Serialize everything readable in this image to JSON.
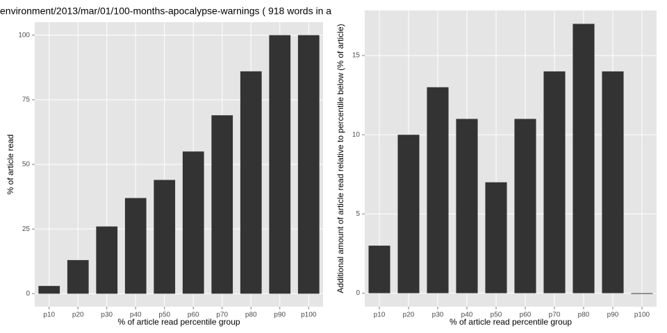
{
  "chart_data": [
    {
      "type": "bar",
      "title": "environment/2013/mar/01/100-months-apocalypse-warnings ( 918 words in a",
      "x_label": "% of article read percentile group",
      "y_label": "% of article read",
      "categories": [
        "p10",
        "p20",
        "p30",
        "p40",
        "p50",
        "p60",
        "p70",
        "p80",
        "p90",
        "p100"
      ],
      "values": [
        3,
        13,
        26,
        37,
        44,
        55,
        69,
        86,
        100,
        100
      ],
      "color": "#333333",
      "ylim": [
        -5,
        105
      ],
      "yticks": [
        0,
        25,
        50,
        75,
        100
      ],
      "grid": true
    },
    {
      "type": "bar",
      "x_label": "% of article read percentile group",
      "y_label": "Additional amount of article read relative to percentile below (% of article)",
      "categories": [
        "p10",
        "p20",
        "p30",
        "p40",
        "p50",
        "p60",
        "p70",
        "p80",
        "p90",
        "p100"
      ],
      "values": [
        3,
        10,
        13,
        11,
        7,
        11,
        14,
        17,
        14,
        0
      ],
      "color": "#333333",
      "ylim": [
        -0.85,
        17.85
      ],
      "yticks": [
        0,
        5,
        10,
        15
      ],
      "grid": true
    }
  ]
}
